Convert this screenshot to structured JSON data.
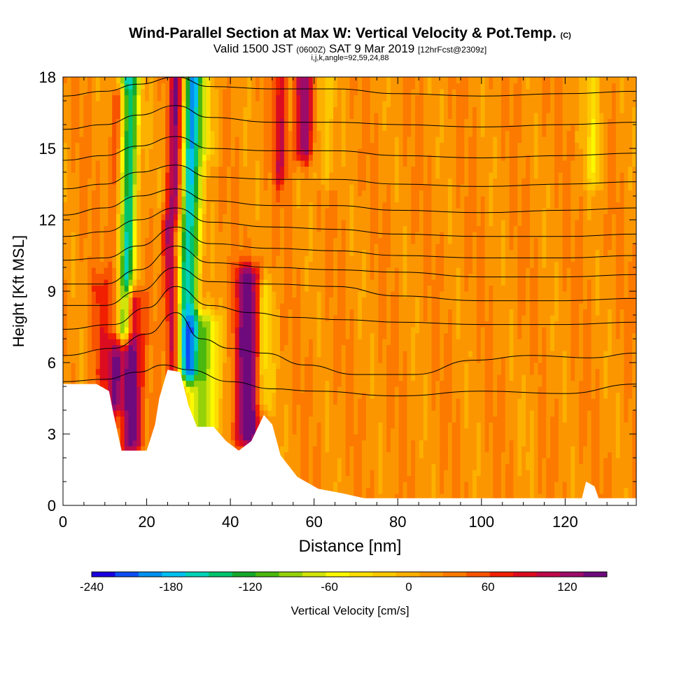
{
  "header": {
    "title": "Wind-Parallel Section at Max W: Vertical Velocity & Pot.Temp.",
    "title_mark": "(C)",
    "subtitle_main": "Valid 1500 JST",
    "subtitle_utc": "(0600Z)",
    "subtitle_date": "SAT 9 Mar 2019",
    "subtitle_fcst": "[12hrFcst@2309z]",
    "info_line": "i,j,k,angle=92,59,24,88"
  },
  "chart_data": {
    "type": "heatmap",
    "xlabel": "Distance [nm]",
    "ylabel": "Height [Kft MSL]",
    "xlim": [
      0,
      137
    ],
    "ylim": [
      0,
      18
    ],
    "x_ticks": [
      "0",
      "20",
      "40",
      "60",
      "80",
      "100",
      "120"
    ],
    "y_ticks": [
      "0",
      "3",
      "6",
      "9",
      "12",
      "15",
      "18"
    ],
    "colorbar": {
      "label": "Vertical Velocity [cm/s]",
      "tick_labels": [
        "-240",
        "-180",
        "-120",
        "-60",
        "0",
        "60",
        "120"
      ],
      "min": -240,
      "max": 150,
      "colors": [
        "#1a00e0",
        "#0d4df2",
        "#0090ee",
        "#00c0f0",
        "#00d2b8",
        "#00c46c",
        "#16a82a",
        "#4ab80e",
        "#96d20a",
        "#d2e40a",
        "#fcf800",
        "#fcde00",
        "#fcc800",
        "#fcb000",
        "#fc9600",
        "#fc7a00",
        "#f85400",
        "#f02000",
        "#dc0c20",
        "#be0a48",
        "#9c0c68",
        "#6e0a7c"
      ]
    },
    "terrain_profile": [
      {
        "x": 0,
        "y": 5.1
      },
      {
        "x": 8,
        "y": 5.1
      },
      {
        "x": 11,
        "y": 4.8
      },
      {
        "x": 12,
        "y": 3.9
      },
      {
        "x": 14,
        "y": 2.3
      },
      {
        "x": 20,
        "y": 2.3
      },
      {
        "x": 22,
        "y": 3.4
      },
      {
        "x": 23,
        "y": 4.5
      },
      {
        "x": 25,
        "y": 5.7
      },
      {
        "x": 28,
        "y": 5.6
      },
      {
        "x": 30,
        "y": 4.2
      },
      {
        "x": 32,
        "y": 3.3
      },
      {
        "x": 36,
        "y": 3.3
      },
      {
        "x": 39,
        "y": 2.7
      },
      {
        "x": 42,
        "y": 2.3
      },
      {
        "x": 45,
        "y": 2.7
      },
      {
        "x": 48,
        "y": 3.8
      },
      {
        "x": 50,
        "y": 3.4
      },
      {
        "x": 52,
        "y": 2.1
      },
      {
        "x": 56,
        "y": 1.2
      },
      {
        "x": 61,
        "y": 0.7
      },
      {
        "x": 67,
        "y": 0.5
      },
      {
        "x": 72,
        "y": 0.3
      },
      {
        "x": 124,
        "y": 0.3
      },
      {
        "x": 125,
        "y": 1.0
      },
      {
        "x": 127,
        "y": 0.8
      },
      {
        "x": 128,
        "y": 0.3
      },
      {
        "x": 137,
        "y": 0.3
      }
    ],
    "vertical_velocity_features": [
      {
        "x": 14.5,
        "y0": 7.5,
        "y1": 18,
        "w": 2.4,
        "tilt": 0.12,
        "value": -210
      },
      {
        "x": 12.5,
        "y0": 4.5,
        "y1": 17,
        "w": 2.0,
        "tilt": 0.1,
        "value": 100
      },
      {
        "x": 16.5,
        "y0": 2.8,
        "y1": 8.5,
        "w": 2.2,
        "tilt": 0.0,
        "value": 140
      },
      {
        "x": 26.5,
        "y0": 12.5,
        "y1": 18,
        "w": 1.6,
        "tilt": 0.15,
        "value": 120
      },
      {
        "x": 26.8,
        "y0": 5.5,
        "y1": 11.5,
        "w": 1.6,
        "tilt": -0.25,
        "value": 110
      },
      {
        "x": 29.5,
        "y0": 5.8,
        "y1": 18,
        "w": 2.4,
        "tilt": 0.13,
        "value": -200
      },
      {
        "x": 33.5,
        "y0": 3.5,
        "y1": 7.5,
        "w": 3.5,
        "tilt": 0.0,
        "value": -120
      },
      {
        "x": 44.0,
        "y0": 3.0,
        "y1": 9.5,
        "w": 3.0,
        "tilt": 0.05,
        "value": 130
      },
      {
        "x": 48.0,
        "y0": 4.5,
        "y1": 9.0,
        "w": 2.0,
        "tilt": 0.0,
        "value": -70
      },
      {
        "x": 52.0,
        "y0": 14.0,
        "y1": 18,
        "w": 1.5,
        "tilt": 0.0,
        "value": 70
      },
      {
        "x": 57.5,
        "y0": 15.0,
        "y1": 18,
        "w": 2.0,
        "tilt": 0.0,
        "value": 110
      },
      {
        "x": 62.5,
        "y0": 14.0,
        "y1": 18,
        "w": 2.2,
        "tilt": 0.0,
        "value": -40
      },
      {
        "x": 35.0,
        "y0": 15.0,
        "y1": 18,
        "w": 2.5,
        "tilt": 0.0,
        "value": -40
      },
      {
        "x": 9.0,
        "y0": 5.5,
        "y1": 9.0,
        "w": 2.5,
        "tilt": 0.0,
        "value": 40
      },
      {
        "x": 127.0,
        "y0": 14.0,
        "y1": 18,
        "w": 2.0,
        "tilt": 0.0,
        "value": -60
      },
      {
        "x": 112.0,
        "y0": 2.0,
        "y1": 5.0,
        "w": 2.0,
        "tilt": 0.0,
        "value": -15
      }
    ],
    "potential_temperature_contours": [
      {
        "label": "",
        "pts": [
          [
            0,
            5.2
          ],
          [
            10,
            5.3
          ],
          [
            18,
            5.6
          ],
          [
            24,
            5.9
          ],
          [
            30,
            5.7
          ],
          [
            40,
            5.2
          ],
          [
            50,
            4.9
          ],
          [
            60,
            4.8
          ],
          [
            80,
            4.6
          ],
          [
            100,
            4.8
          ],
          [
            120,
            4.7
          ],
          [
            137,
            5.1
          ]
        ]
      },
      {
        "label": "",
        "pts": [
          [
            0,
            6.3
          ],
          [
            12,
            6.6
          ],
          [
            20,
            7.2
          ],
          [
            27,
            8.1
          ],
          [
            33,
            7.0
          ],
          [
            40,
            6.6
          ],
          [
            48,
            6.4
          ],
          [
            58,
            5.9
          ],
          [
            70,
            5.5
          ],
          [
            84,
            5.5
          ],
          [
            98,
            6.1
          ],
          [
            112,
            6.3
          ],
          [
            126,
            6.2
          ],
          [
            137,
            6.4
          ]
        ]
      },
      {
        "label": "",
        "pts": [
          [
            0,
            7.4
          ],
          [
            12,
            7.6
          ],
          [
            20,
            8.3
          ],
          [
            27,
            9.2
          ],
          [
            35,
            8.4
          ],
          [
            45,
            8.1
          ],
          [
            55,
            7.9
          ],
          [
            67,
            7.8
          ],
          [
            80,
            7.7
          ],
          [
            100,
            7.6
          ],
          [
            120,
            7.6
          ],
          [
            137,
            7.7
          ]
        ]
      },
      {
        "label": "",
        "pts": [
          [
            0,
            8.4
          ],
          [
            10,
            8.4
          ],
          [
            18,
            9.0
          ],
          [
            27,
            10.0
          ],
          [
            35,
            9.4
          ],
          [
            50,
            9.3
          ],
          [
            65,
            9.2
          ],
          [
            80,
            8.8
          ],
          [
            100,
            8.6
          ],
          [
            120,
            8.6
          ],
          [
            137,
            8.7
          ]
        ]
      },
      {
        "label": "",
        "pts": [
          [
            0,
            9.3
          ],
          [
            10,
            9.3
          ],
          [
            18,
            9.9
          ],
          [
            27,
            10.9
          ],
          [
            35,
            10.2
          ],
          [
            50,
            10.0
          ],
          [
            65,
            9.9
          ],
          [
            80,
            9.8
          ],
          [
            100,
            9.6
          ],
          [
            120,
            9.6
          ],
          [
            137,
            9.7
          ]
        ]
      },
      {
        "label": "",
        "pts": [
          [
            0,
            10.3
          ],
          [
            10,
            10.4
          ],
          [
            18,
            10.9
          ],
          [
            27,
            11.7
          ],
          [
            35,
            11.0
          ],
          [
            50,
            10.8
          ],
          [
            65,
            10.7
          ],
          [
            80,
            10.5
          ],
          [
            100,
            10.4
          ],
          [
            120,
            10.4
          ],
          [
            137,
            10.5
          ]
        ]
      },
      {
        "label": "",
        "pts": [
          [
            0,
            11.3
          ],
          [
            10,
            11.5
          ],
          [
            18,
            12.0
          ],
          [
            27,
            12.5
          ],
          [
            35,
            11.9
          ],
          [
            50,
            11.7
          ],
          [
            65,
            11.6
          ],
          [
            80,
            11.4
          ],
          [
            100,
            11.3
          ],
          [
            120,
            11.3
          ],
          [
            137,
            11.4
          ]
        ]
      },
      {
        "label": "",
        "pts": [
          [
            0,
            12.2
          ],
          [
            10,
            12.5
          ],
          [
            18,
            13.0
          ],
          [
            27,
            13.3
          ],
          [
            35,
            12.8
          ],
          [
            50,
            12.6
          ],
          [
            65,
            12.6
          ],
          [
            80,
            12.4
          ],
          [
            100,
            12.3
          ],
          [
            120,
            12.4
          ],
          [
            137,
            12.5
          ]
        ]
      },
      {
        "label": "",
        "pts": [
          [
            0,
            13.3
          ],
          [
            10,
            13.5
          ],
          [
            18,
            14.0
          ],
          [
            27,
            14.3
          ],
          [
            35,
            13.8
          ],
          [
            50,
            13.7
          ],
          [
            65,
            13.7
          ],
          [
            80,
            13.5
          ],
          [
            100,
            13.4
          ],
          [
            120,
            13.5
          ],
          [
            137,
            13.6
          ]
        ]
      },
      {
        "label": "",
        "pts": [
          [
            0,
            14.5
          ],
          [
            10,
            14.7
          ],
          [
            18,
            15.1
          ],
          [
            27,
            15.5
          ],
          [
            35,
            15.0
          ],
          [
            50,
            14.9
          ],
          [
            65,
            14.9
          ],
          [
            80,
            14.7
          ],
          [
            100,
            14.6
          ],
          [
            120,
            14.7
          ],
          [
            137,
            14.8
          ]
        ]
      },
      {
        "label": "",
        "pts": [
          [
            0,
            15.8
          ],
          [
            10,
            16.0
          ],
          [
            18,
            16.4
          ],
          [
            27,
            16.8
          ],
          [
            35,
            16.3
          ],
          [
            50,
            16.1
          ],
          [
            65,
            16.1
          ],
          [
            80,
            16.0
          ],
          [
            100,
            15.9
          ],
          [
            120,
            16.0
          ],
          [
            137,
            16.1
          ]
        ]
      },
      {
        "label": "",
        "pts": [
          [
            0,
            17.2
          ],
          [
            10,
            17.4
          ],
          [
            18,
            17.7
          ],
          [
            27,
            18.0
          ],
          [
            35,
            17.6
          ],
          [
            50,
            17.5
          ],
          [
            65,
            17.5
          ],
          [
            80,
            17.3
          ],
          [
            100,
            17.2
          ],
          [
            120,
            17.3
          ],
          [
            137,
            17.4
          ]
        ]
      }
    ]
  }
}
